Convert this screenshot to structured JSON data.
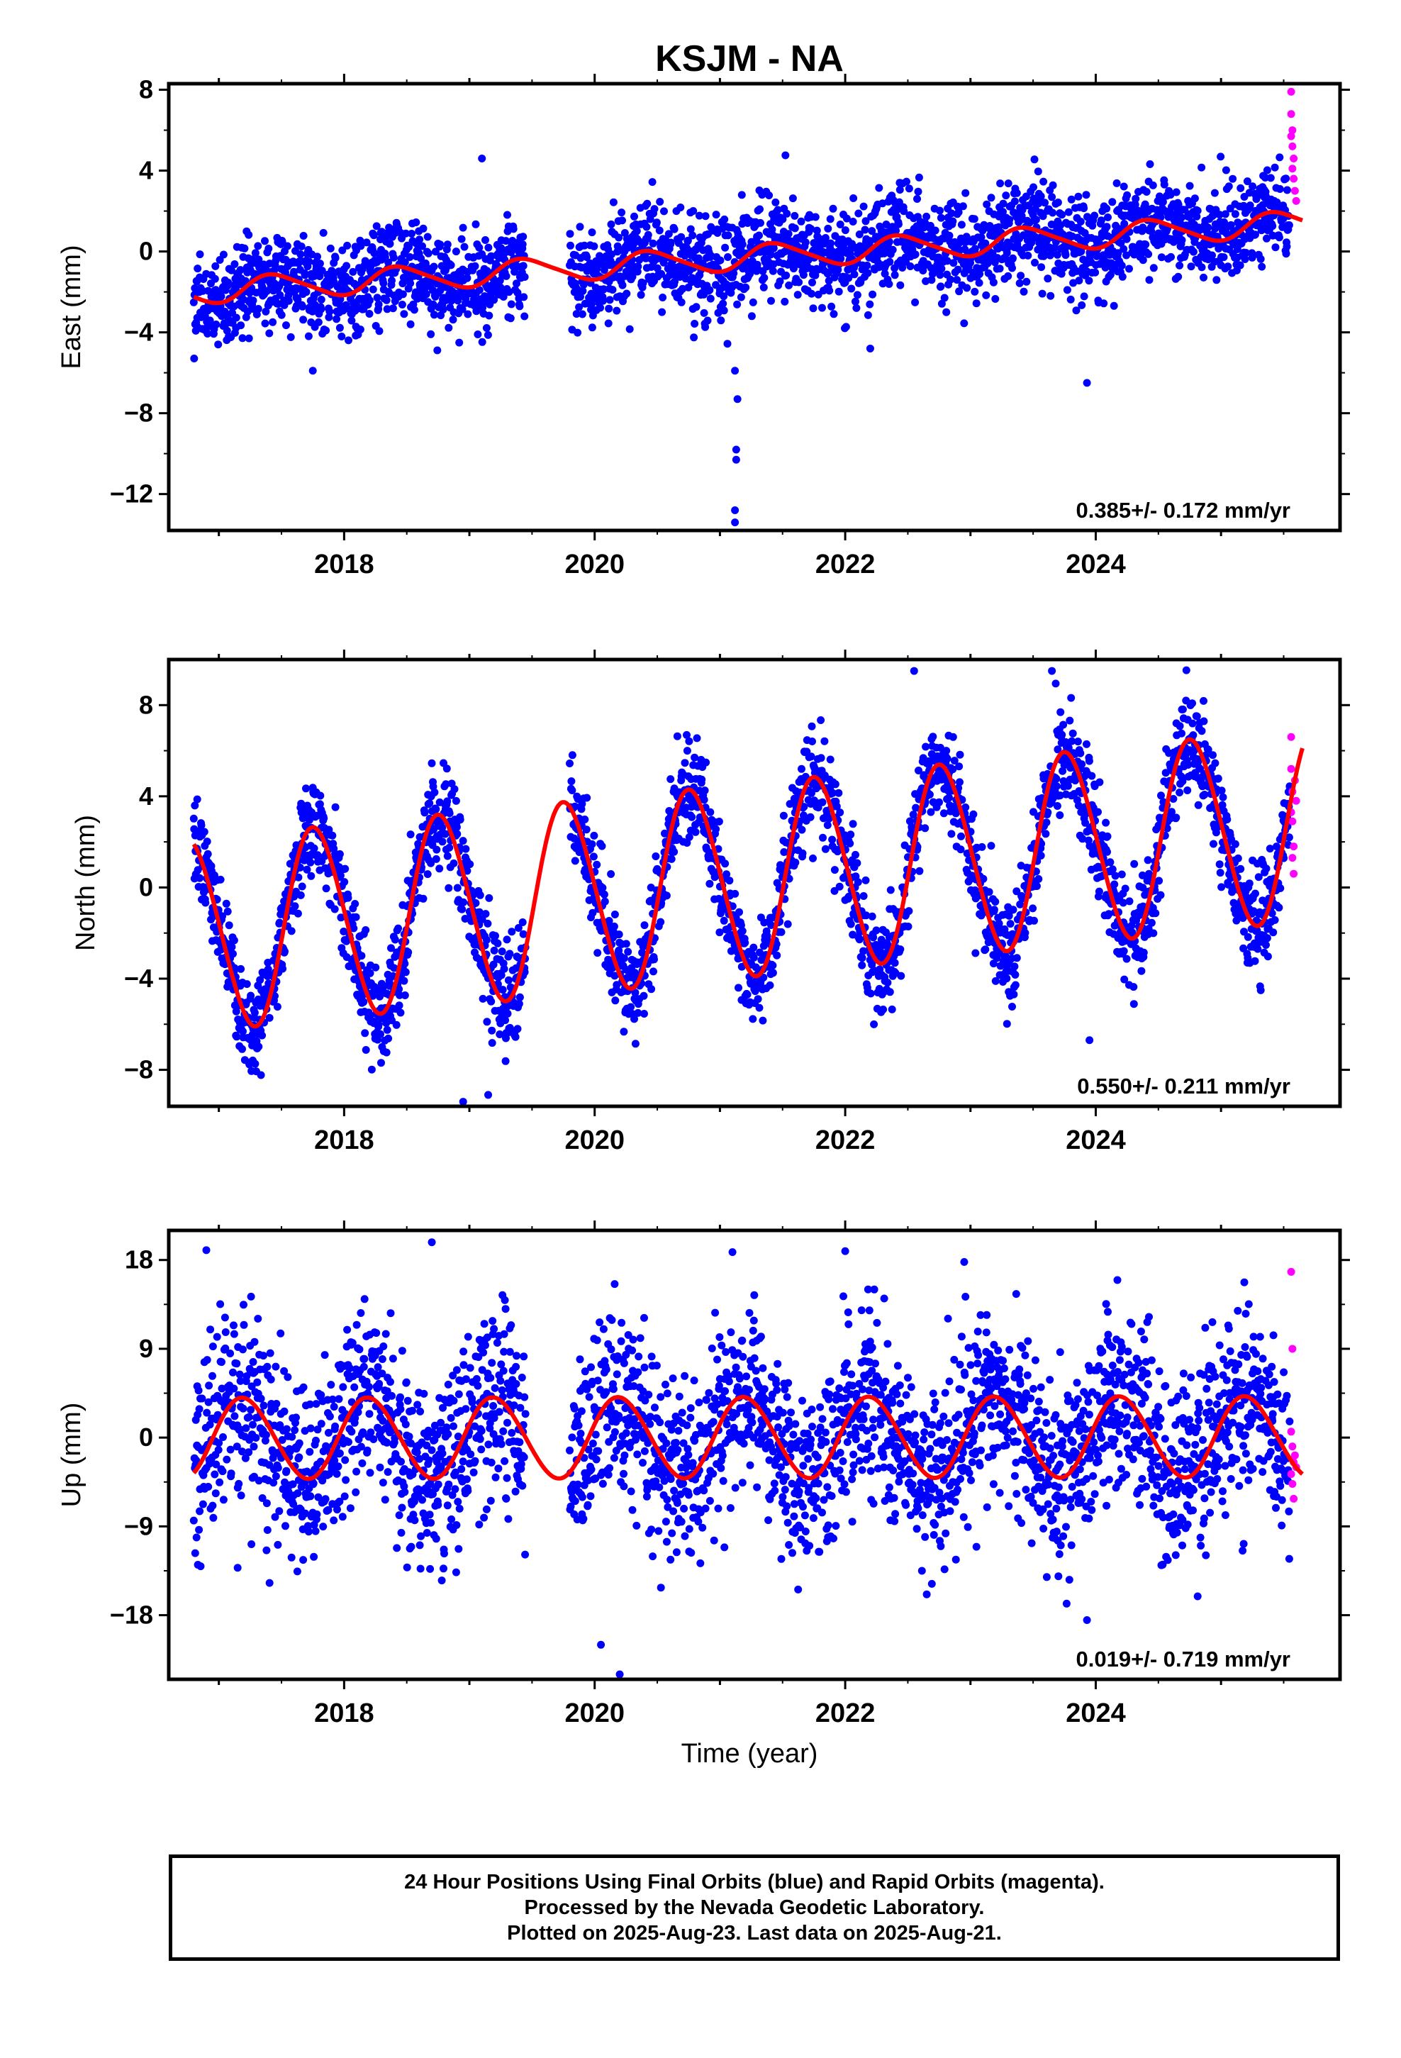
{
  "title": "KSJM - NA",
  "xlabel": "Time (year)",
  "colors": {
    "final": "#0000ff",
    "rapid": "#ff00ff",
    "model": "#ff0000",
    "frame": "#000000"
  },
  "notes": [
    "24 Hour Positions Using Final Orbits (blue) and Rapid Orbits (magenta).",
    "Processed by the Nevada Geodetic Laboratory.",
    "Plotted on 2025-Aug-23. Last data on 2025-Aug-21."
  ],
  "chart_data": [
    {
      "type": "scatter",
      "ylabel": "East (mm)",
      "rate_label": "0.385+/- 0.172 mm/yr",
      "xlim": [
        2016.6,
        2025.95
      ],
      "ylim": [
        -13.8,
        8.3
      ],
      "xticks": [
        2018,
        2020,
        2022,
        2024
      ],
      "yticks": [
        -12,
        -8,
        -4,
        0,
        4,
        8
      ],
      "ytick_labels": [
        "−12",
        "−8",
        "−4",
        "0",
        "4",
        "8"
      ],
      "data_start": 2016.8,
      "gap": [
        2019.45,
        2019.8
      ],
      "rapid_start": 2025.55,
      "data_end": 2025.65,
      "model": {
        "offset": -0.3,
        "rate": 0.385,
        "ref_year": 2021.2,
        "annual_amp": 0.6,
        "annual_phase": 0.2,
        "semiannual_amp": 0.1
      },
      "scatter_sd": 1.2,
      "outliers": [
        [
          2021.12,
          -13.4
        ],
        [
          2021.12,
          -12.8
        ],
        [
          2021.13,
          -10.3
        ],
        [
          2021.13,
          -9.8
        ],
        [
          2021.14,
          -7.3
        ],
        [
          2021.12,
          -5.9
        ],
        [
          2023.93,
          -6.5
        ],
        [
          2017.75,
          -5.9
        ],
        [
          2019.1,
          4.6
        ],
        [
          2022.2,
          -4.8
        ]
      ],
      "rapid_points": [
        [
          2025.56,
          7.9
        ],
        [
          2025.56,
          6.8
        ],
        [
          2025.57,
          6.0
        ],
        [
          2025.56,
          5.7
        ],
        [
          2025.57,
          5.2
        ],
        [
          2025.58,
          4.6
        ],
        [
          2025.57,
          4.1
        ],
        [
          2025.58,
          3.6
        ],
        [
          2025.59,
          3.0
        ],
        [
          2025.6,
          2.5
        ]
      ]
    },
    {
      "type": "scatter",
      "ylabel": "North (mm)",
      "rate_label": "0.550+/- 0.211 mm/yr",
      "xlim": [
        2016.6,
        2025.95
      ],
      "ylim": [
        -9.6,
        10.0
      ],
      "xticks": [
        2018,
        2020,
        2022,
        2024
      ],
      "yticks": [
        -8,
        -4,
        0,
        4,
        8
      ],
      "ytick_labels": [
        "−8",
        "−4",
        "0",
        "4",
        "8"
      ],
      "data_start": 2016.8,
      "gap": [
        2019.45,
        2019.8
      ],
      "rapid_start": 2025.55,
      "data_end": 2025.65,
      "model": {
        "offset": 0.3,
        "rate": 0.55,
        "ref_year": 2021.2,
        "annual_amp": 4.2,
        "annual_phase": 0.52,
        "semiannual_amp": 0.3
      },
      "scatter_sd": 1.1,
      "outliers": [
        [
          2018.95,
          -9.4
        ],
        [
          2019.15,
          -9.1
        ],
        [
          2023.95,
          -6.7
        ],
        [
          2022.55,
          9.5
        ],
        [
          2023.65,
          9.5
        ]
      ],
      "rapid_points": [
        [
          2025.56,
          6.6
        ],
        [
          2025.56,
          5.2
        ],
        [
          2025.57,
          4.2
        ],
        [
          2025.56,
          3.3
        ],
        [
          2025.57,
          2.9
        ],
        [
          2025.58,
          1.8
        ],
        [
          2025.57,
          1.3
        ],
        [
          2025.58,
          0.6
        ],
        [
          2025.59,
          4.7
        ],
        [
          2025.6,
          3.8
        ]
      ]
    },
    {
      "type": "scatter",
      "ylabel": "Up (mm)",
      "rate_label": "0.019+/- 0.719 mm/yr",
      "xlim": [
        2016.6,
        2025.95
      ],
      "ylim": [
        -24.5,
        21.0
      ],
      "xticks": [
        2018,
        2020,
        2022,
        2024
      ],
      "yticks": [
        -18,
        -9,
        0,
        9,
        18
      ],
      "ytick_labels": [
        "−18",
        "−9",
        "0",
        "9",
        "18"
      ],
      "data_start": 2016.8,
      "gap": [
        2019.45,
        2019.8
      ],
      "rapid_start": 2025.55,
      "data_end": 2025.65,
      "model": {
        "offset": 0.0,
        "rate": 0.019,
        "ref_year": 2021.2,
        "annual_amp": 4.1,
        "annual_phase": 0.95,
        "semiannual_amp": 0.2
      },
      "scatter_sd": 4.6,
      "outliers": [
        [
          2020.2,
          -24.0
        ],
        [
          2020.05,
          -21.0
        ],
        [
          2021.1,
          18.8
        ],
        [
          2022.0,
          18.9
        ],
        [
          2022.95,
          17.8
        ],
        [
          2018.7,
          19.8
        ],
        [
          2016.9,
          19.0
        ],
        [
          2023.93,
          -18.5
        ],
        [
          2017.15,
          -13.2
        ]
      ],
      "rapid_points": [
        [
          2025.56,
          16.8
        ],
        [
          2025.57,
          9.0
        ],
        [
          2025.56,
          0.6
        ],
        [
          2025.57,
          -0.9
        ],
        [
          2025.58,
          -2.5
        ],
        [
          2025.56,
          -3.7
        ],
        [
          2025.57,
          -4.7
        ],
        [
          2025.58,
          -6.2
        ],
        [
          2025.59,
          -1.8
        ],
        [
          2025.6,
          -3.0
        ]
      ]
    }
  ]
}
